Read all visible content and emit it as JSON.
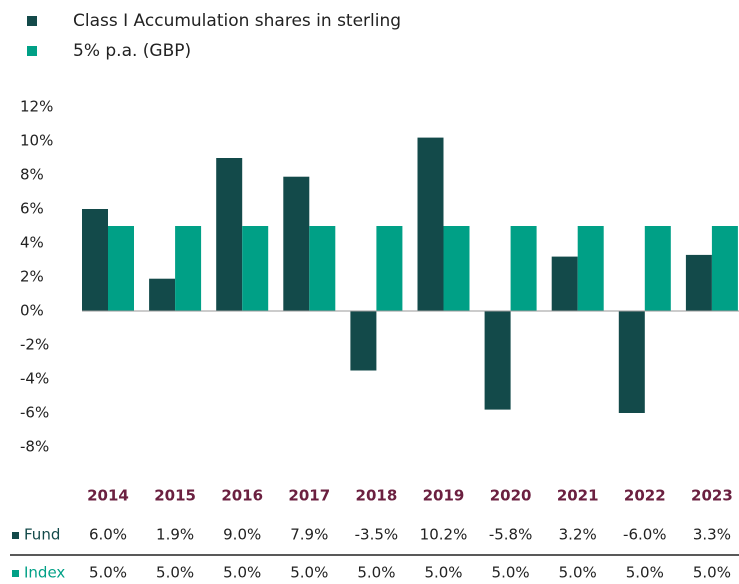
{
  "chart_data": {
    "type": "bar",
    "categories": [
      "2014",
      "2015",
      "2016",
      "2017",
      "2018",
      "2019",
      "2020",
      "2021",
      "2022",
      "2023"
    ],
    "series": [
      {
        "name": "Class I Accumulation shares in sterling",
        "color": "#134a4a",
        "values": [
          6.0,
          1.9,
          9.0,
          7.9,
          -3.5,
          10.2,
          -5.8,
          3.2,
          -6.0,
          3.3
        ],
        "value_labels": [
          "6.0%",
          "1.9%",
          "9.0%",
          "7.9%",
          "-3.5%",
          "10.2%",
          "-5.8%",
          "3.2%",
          "-6.0%",
          "3.3%"
        ]
      },
      {
        "name": "5% p.a. (GBP)",
        "color": "#00a086",
        "values": [
          5.0,
          5.0,
          5.0,
          5.0,
          5.0,
          5.0,
          5.0,
          5.0,
          5.0,
          5.0
        ],
        "value_labels": [
          "5.0%",
          "5.0%",
          "5.0%",
          "5.0%",
          "5.0%",
          "5.0%",
          "5.0%",
          "5.0%",
          "5.0%",
          "5.0%"
        ]
      }
    ],
    "table_row_labels": [
      "Fund",
      "Index"
    ],
    "ylim": [
      -8,
      12
    ],
    "yticks": [
      {
        "value": 12,
        "label": "12%"
      },
      {
        "value": 10,
        "label": "10%"
      },
      {
        "value": 8,
        "label": "8%"
      },
      {
        "value": 6,
        "label": "6%"
      },
      {
        "value": 4,
        "label": "4%"
      },
      {
        "value": 2,
        "label": "2%"
      },
      {
        "value": 0,
        "label": "0%"
      },
      {
        "value": -2,
        "label": "-2%"
      },
      {
        "value": -4,
        "label": "-4%"
      },
      {
        "value": -6,
        "label": "-6%"
      },
      {
        "value": -8,
        "label": "-8%"
      }
    ]
  }
}
